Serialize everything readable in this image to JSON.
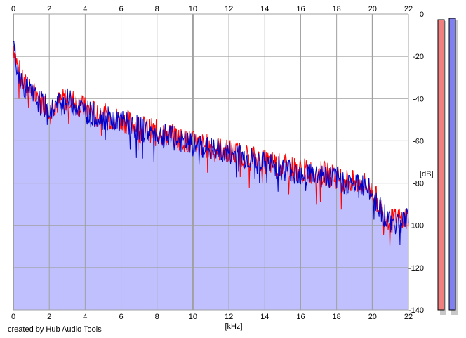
{
  "credit": "created by Hub Audio Tools",
  "colors": {
    "fill": "#c0c0ff",
    "left_channel": "#ff0000",
    "right_channel": "#0000c8",
    "grid": "#a0a0a0",
    "meter_left": "#f08080",
    "meter_right": "#8080f0"
  },
  "chart_data": {
    "type": "area",
    "title": "",
    "xlabel": "[kHz]",
    "ylabel": "[dB]",
    "xlim": [
      0,
      22
    ],
    "ylim": [
      -140,
      0
    ],
    "x_ticks": [
      "0",
      "2",
      "4",
      "6",
      "8",
      "10",
      "12",
      "14",
      "16",
      "18",
      "20",
      "22"
    ],
    "y_ticks": [
      "0",
      "-20",
      "-40",
      "-60",
      "-80",
      "-100",
      "-120",
      "-140"
    ],
    "x_ticks_position": "top-and-bottom",
    "y_ticks_position": "right",
    "grid": true,
    "series_x_khz": [
      0,
      0.25,
      0.5,
      1,
      1.5,
      2,
      2.5,
      3,
      3.5,
      4,
      5,
      6,
      7,
      8,
      9,
      10,
      11,
      12,
      13,
      14,
      15,
      16,
      17,
      18,
      19,
      19.5,
      20,
      20.5,
      21,
      21.5,
      22
    ],
    "series": [
      {
        "channel": "left",
        "values": [
          -15,
          -25,
          -32,
          -37,
          -41,
          -44,
          -42,
          -40,
          -42,
          -45,
          -48,
          -50,
          -53,
          -56,
          -58,
          -61,
          -63,
          -65,
          -67,
          -70,
          -72,
          -74,
          -75,
          -77,
          -80,
          -80,
          -84,
          -92,
          -98,
          -97,
          -96
        ]
      },
      {
        "channel": "right",
        "values": [
          -14,
          -26,
          -33,
          -38,
          -42,
          -45,
          -43,
          -41,
          -43,
          -46,
          -49,
          -51,
          -54,
          -57,
          -59,
          -62,
          -64,
          -66,
          -68,
          -71,
          -73,
          -75,
          -76,
          -78,
          -81,
          -81,
          -85,
          -93,
          -99,
          -98,
          -97
        ]
      }
    ],
    "meters": [
      {
        "channel": "left",
        "level_db": -2
      },
      {
        "channel": "right",
        "level_db": -2
      }
    ]
  }
}
